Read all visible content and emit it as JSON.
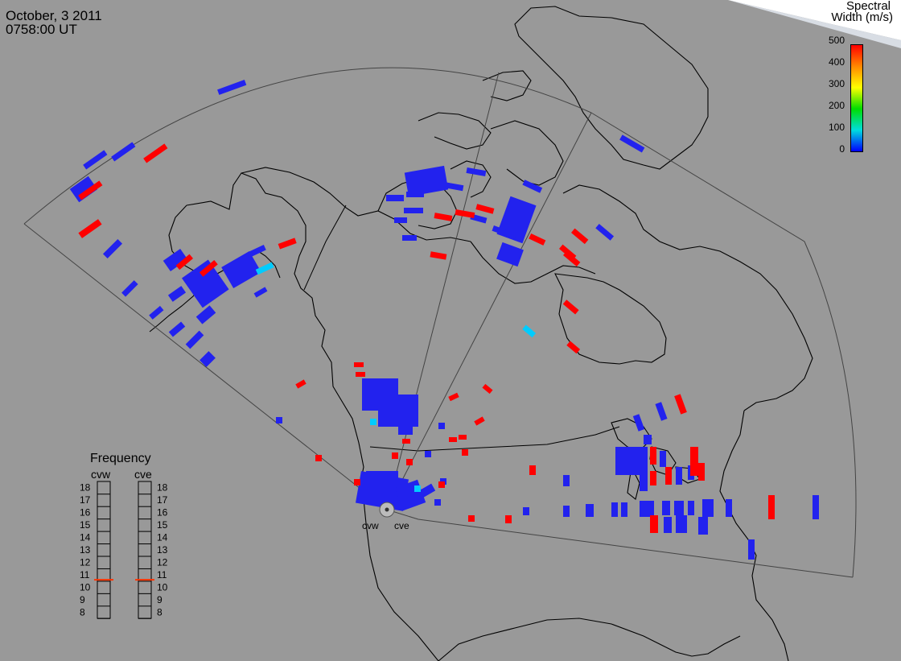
{
  "header": {
    "date": "October, 3 2011",
    "time": "0758:00 UT"
  },
  "colorbar": {
    "title_line1": "Spectral",
    "title_line2": "Width (m/s)",
    "ticks": [
      "500",
      "400",
      "300",
      "200",
      "100",
      "0"
    ],
    "gradient_colors": [
      "#ff0000",
      "#ff8800",
      "#ffff00",
      "#00dd00",
      "#00dddd",
      "#0000ff"
    ]
  },
  "frequency_panel": {
    "title": "Frequency",
    "radars": [
      {
        "name": "cvw",
        "selected_mhz": 10.6
      },
      {
        "name": "cve",
        "selected_mhz": 10.6
      }
    ],
    "scale": [
      "18",
      "17",
      "16",
      "15",
      "14",
      "13",
      "12",
      "11",
      "10",
      "9",
      "8"
    ],
    "marker_color": "#ff3300"
  },
  "radar_sites": {
    "west_label": "cvw",
    "east_label": "cve"
  },
  "colors": {
    "background": "#999999",
    "low": "#2222ee",
    "high": "#ff0000",
    "cyan": "#00ccff"
  }
}
